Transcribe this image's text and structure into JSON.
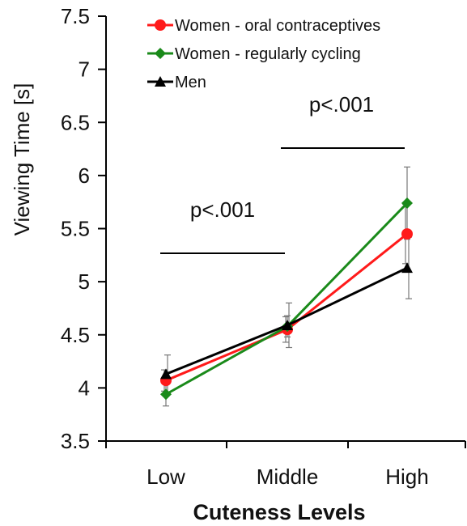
{
  "chart_data": {
    "type": "line",
    "xlabel": "Cuteness Levels",
    "ylabel": "Viewing Time [s]",
    "categories": [
      "Low",
      "Middle",
      "High"
    ],
    "ylim": [
      3.5,
      7.5
    ],
    "yticks": [
      "3.5",
      "4",
      "4.5",
      "5",
      "5.5",
      "6",
      "6.5",
      "7",
      "7.5"
    ],
    "grid": false,
    "legend_position": "top-left",
    "series": [
      {
        "name": "Women - oral contraceptives",
        "color": "#ff1a1a",
        "marker": "circle",
        "values": [
          4.07,
          4.55,
          5.45
        ],
        "errors": [
          0.1,
          0.12,
          0.28
        ]
      },
      {
        "name": "Women - regularly cycling",
        "color": "#1a8a1a",
        "marker": "diamond",
        "values": [
          3.94,
          4.58,
          5.74
        ],
        "errors": [
          0.11,
          0.1,
          0.34
        ]
      },
      {
        "name": "Men",
        "color": "#000000",
        "marker": "triangle",
        "values": [
          4.13,
          4.59,
          5.13
        ],
        "errors": [
          0.18,
          0.21,
          0.29
        ]
      }
    ],
    "annotations": [
      {
        "text": "p<.001",
        "between": [
          "Low",
          "Middle"
        ]
      },
      {
        "text": "p<.001",
        "between": [
          "Middle",
          "High"
        ]
      }
    ]
  }
}
